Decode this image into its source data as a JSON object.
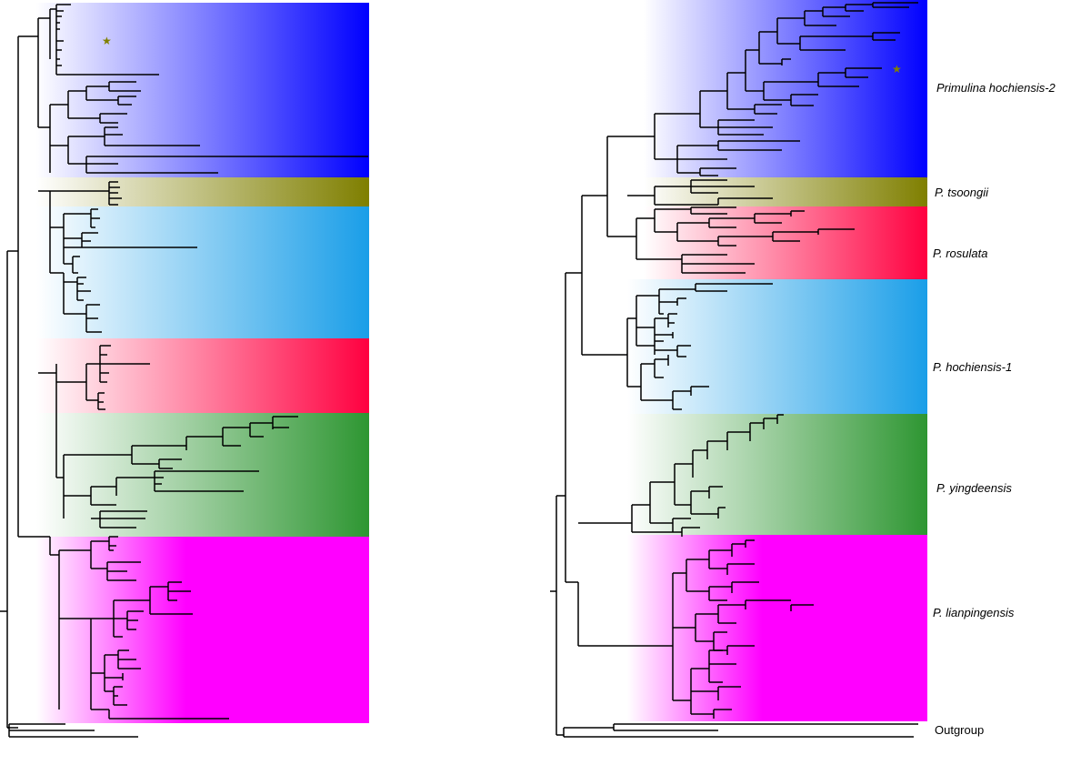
{
  "figure": {
    "right_tree_labels": [
      {
        "key": "blue",
        "text": "Primulina hochiensis-2",
        "color": "#0000ff"
      },
      {
        "key": "olive",
        "text": "P. tsoongii",
        "color": "#808000"
      },
      {
        "key": "red",
        "text": "P. rosulata",
        "color": "#ff0040"
      },
      {
        "key": "cyan",
        "text": "P. hochiensis-1",
        "color": "#1a9ee8"
      },
      {
        "key": "green",
        "text": "P. yingdeensis",
        "color": "#2e9632"
      },
      {
        "key": "magenta",
        "text": "P. lianpingensis",
        "color": "#ff00ff"
      }
    ],
    "outgroup_label": "Outgroup",
    "marker": {
      "symbol": "★",
      "color": "#808000"
    }
  }
}
